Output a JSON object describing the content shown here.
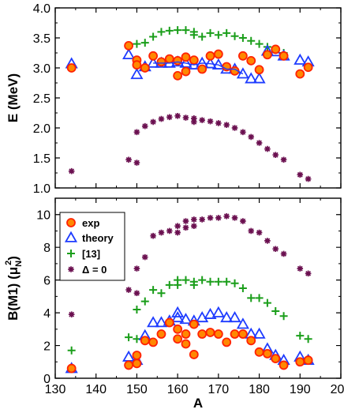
{
  "colors": {
    "exp_fill": "#ff8800",
    "exp_stroke": "#ff2200",
    "theory": "#1e3cff",
    "ref13": "#1a9e1a",
    "delta0": "#6b1050",
    "axis": "#000000"
  },
  "chart_data": [
    {
      "type": "scatter",
      "panel": "top",
      "ylabel": "E (MeV)",
      "xlim": [
        130,
        200
      ],
      "ylim": [
        1.0,
        4.0
      ],
      "xticks": [
        130,
        140,
        150,
        160,
        170,
        180,
        190,
        200
      ],
      "yticks": [
        "1.0",
        "1.5",
        "2.0",
        "2.5",
        "3.0",
        "3.5",
        "4.0"
      ],
      "grid": false,
      "series": [
        {
          "name": "exp",
          "marker": "circle",
          "points": [
            [
              134,
              3.0
            ],
            [
              148,
              3.37
            ],
            [
              150,
              3.13
            ],
            [
              150,
              3.05
            ],
            [
              152,
              3.0
            ],
            [
              154,
              3.2
            ],
            [
              156,
              3.1
            ],
            [
              158,
              3.15
            ],
            [
              160,
              3.12
            ],
            [
              160,
              2.87
            ],
            [
              162,
              3.18
            ],
            [
              162,
              2.94
            ],
            [
              164,
              3.13
            ],
            [
              166,
              2.98
            ],
            [
              168,
              3.2
            ],
            [
              170,
              3.23
            ],
            [
              172,
              3.02
            ],
            [
              174,
              2.95
            ],
            [
              176,
              3.2
            ],
            [
              178,
              3.12
            ],
            [
              180,
              2.97
            ],
            [
              182,
              3.22
            ],
            [
              184,
              3.31
            ],
            [
              186,
              3.2
            ],
            [
              190,
              2.9
            ],
            [
              192,
              3.01
            ]
          ]
        },
        {
          "name": "theory",
          "marker": "triangle",
          "points": [
            [
              134,
              3.07
            ],
            [
              148,
              3.22
            ],
            [
              150,
              2.89
            ],
            [
              152,
              3.02
            ],
            [
              154,
              3.08
            ],
            [
              156,
              3.08
            ],
            [
              158,
              3.08
            ],
            [
              160,
              3.1
            ],
            [
              162,
              3.08
            ],
            [
              164,
              3.05
            ],
            [
              166,
              3.08
            ],
            [
              168,
              3.07
            ],
            [
              170,
              3.05
            ],
            [
              172,
              2.98
            ],
            [
              174,
              2.98
            ],
            [
              176,
              2.9
            ],
            [
              178,
              2.82
            ],
            [
              180,
              2.82
            ],
            [
              182,
              3.28
            ],
            [
              184,
              3.27
            ],
            [
              186,
              3.2
            ],
            [
              190,
              3.13
            ],
            [
              192,
              3.1
            ]
          ]
        },
        {
          "name": "[13]",
          "marker": "plus",
          "points": [
            [
              150,
              3.4
            ],
            [
              152,
              3.42
            ],
            [
              154,
              3.52
            ],
            [
              156,
              3.6
            ],
            [
              158,
              3.62
            ],
            [
              160,
              3.63
            ],
            [
              162,
              3.63
            ],
            [
              164,
              3.6
            ],
            [
              164,
              3.55
            ],
            [
              166,
              3.52
            ],
            [
              168,
              3.58
            ],
            [
              170,
              3.55
            ],
            [
              172,
              3.58
            ],
            [
              174,
              3.53
            ],
            [
              176,
              3.5
            ],
            [
              178,
              3.45
            ],
            [
              180,
              3.4
            ],
            [
              182,
              3.35
            ],
            [
              184,
              3.3
            ],
            [
              186,
              3.25
            ]
          ]
        },
        {
          "name": "Δ = 0",
          "marker": "star",
          "points": [
            [
              134,
              1.28
            ],
            [
              148,
              1.47
            ],
            [
              150,
              1.42
            ],
            [
              150,
              1.93
            ],
            [
              152,
              2.03
            ],
            [
              154,
              2.1
            ],
            [
              156,
              2.15
            ],
            [
              158,
              2.18
            ],
            [
              160,
              2.2
            ],
            [
              162,
              2.17
            ],
            [
              164,
              2.16
            ],
            [
              164,
              2.1
            ],
            [
              166,
              2.13
            ],
            [
              168,
              2.11
            ],
            [
              170,
              2.08
            ],
            [
              172,
              2.05
            ],
            [
              174,
              2.0
            ],
            [
              176,
              1.93
            ],
            [
              178,
              1.85
            ],
            [
              180,
              1.75
            ],
            [
              182,
              1.65
            ],
            [
              184,
              1.55
            ],
            [
              186,
              1.47
            ],
            [
              190,
              1.22
            ],
            [
              192,
              1.15
            ]
          ]
        }
      ]
    },
    {
      "type": "scatter",
      "panel": "bottom",
      "ylabel": "B(M1) (μ",
      "ylabel_sub": "N",
      "ylabel_sup": "2",
      "ylabel_end": ")",
      "xlabel": "A",
      "xlim": [
        130,
        200
      ],
      "ylim": [
        0,
        11
      ],
      "xticks": [
        130,
        140,
        150,
        160,
        170,
        180,
        190,
        200
      ],
      "yticks": [
        0,
        2,
        4,
        6,
        8,
        10
      ],
      "grid": false,
      "legend_position": "top-left",
      "series": [
        {
          "name": "exp",
          "marker": "circle",
          "points": [
            [
              134,
              0.6
            ],
            [
              148,
              0.8
            ],
            [
              150,
              0.9
            ],
            [
              150,
              1.4
            ],
            [
              152,
              2.3
            ],
            [
              154,
              2.2
            ],
            [
              156,
              2.7
            ],
            [
              158,
              3.4
            ],
            [
              160,
              3.0
            ],
            [
              160,
              2.4
            ],
            [
              162,
              2.7
            ],
            [
              162,
              2.1
            ],
            [
              164,
              1.45
            ],
            [
              164,
              3.3
            ],
            [
              166,
              2.7
            ],
            [
              168,
              2.8
            ],
            [
              170,
              2.7
            ],
            [
              172,
              2.2
            ],
            [
              174,
              2.7
            ],
            [
              176,
              2.7
            ],
            [
              178,
              2.3
            ],
            [
              180,
              1.6
            ],
            [
              182,
              1.5
            ],
            [
              184,
              1.2
            ],
            [
              186,
              0.8
            ],
            [
              190,
              1.0
            ],
            [
              192,
              1.1
            ]
          ]
        },
        {
          "name": "theory",
          "marker": "triangle",
          "points": [
            [
              134,
              0.6
            ],
            [
              148,
              1.3
            ],
            [
              150,
              1.1
            ],
            [
              152,
              2.6
            ],
            [
              154,
              3.4
            ],
            [
              156,
              3.4
            ],
            [
              158,
              3.5
            ],
            [
              160,
              3.7
            ],
            [
              160,
              4.0
            ],
            [
              162,
              3.6
            ],
            [
              164,
              3.5
            ],
            [
              166,
              3.7
            ],
            [
              168,
              3.9
            ],
            [
              170,
              4.0
            ],
            [
              172,
              3.7
            ],
            [
              174,
              3.7
            ],
            [
              176,
              3.3
            ],
            [
              178,
              2.7
            ],
            [
              180,
              2.7
            ],
            [
              182,
              1.8
            ],
            [
              184,
              1.4
            ],
            [
              186,
              1.1
            ],
            [
              190,
              1.3
            ],
            [
              192,
              1.1
            ]
          ]
        },
        {
          "name": "[13]",
          "marker": "plus",
          "points": [
            [
              134,
              1.7
            ],
            [
              148,
              2.5
            ],
            [
              150,
              2.4
            ],
            [
              150,
              4.2
            ],
            [
              152,
              4.7
            ],
            [
              154,
              5.4
            ],
            [
              156,
              5.2
            ],
            [
              158,
              5.7
            ],
            [
              160,
              5.7
            ],
            [
              160,
              6.0
            ],
            [
              162,
              6.0
            ],
            [
              164,
              5.9
            ],
            [
              164,
              5.7
            ],
            [
              166,
              6.0
            ],
            [
              168,
              5.9
            ],
            [
              170,
              5.9
            ],
            [
              172,
              5.9
            ],
            [
              174,
              5.8
            ],
            [
              176,
              5.5
            ],
            [
              178,
              4.9
            ],
            [
              180,
              4.9
            ],
            [
              182,
              4.6
            ],
            [
              184,
              4.1
            ],
            [
              186,
              3.8
            ],
            [
              190,
              2.6
            ],
            [
              192,
              2.4
            ]
          ]
        },
        {
          "name": "Δ = 0",
          "marker": "star",
          "points": [
            [
              134,
              3.9
            ],
            [
              148,
              5.4
            ],
            [
              150,
              5.2
            ],
            [
              150,
              6.7
            ],
            [
              152,
              7.4
            ],
            [
              154,
              8.7
            ],
            [
              156,
              8.9
            ],
            [
              158,
              9.0
            ],
            [
              160,
              9.3
            ],
            [
              160,
              8.9
            ],
            [
              162,
              9.2
            ],
            [
              162,
              9.6
            ],
            [
              164,
              9.3
            ],
            [
              164,
              9.7
            ],
            [
              166,
              9.7
            ],
            [
              168,
              9.8
            ],
            [
              170,
              9.8
            ],
            [
              172,
              9.9
            ],
            [
              174,
              9.8
            ],
            [
              176,
              9.6
            ],
            [
              178,
              9.0
            ],
            [
              180,
              8.9
            ],
            [
              182,
              8.4
            ],
            [
              184,
              7.9
            ],
            [
              186,
              7.6
            ],
            [
              190,
              6.7
            ],
            [
              192,
              6.4
            ]
          ]
        }
      ]
    }
  ]
}
